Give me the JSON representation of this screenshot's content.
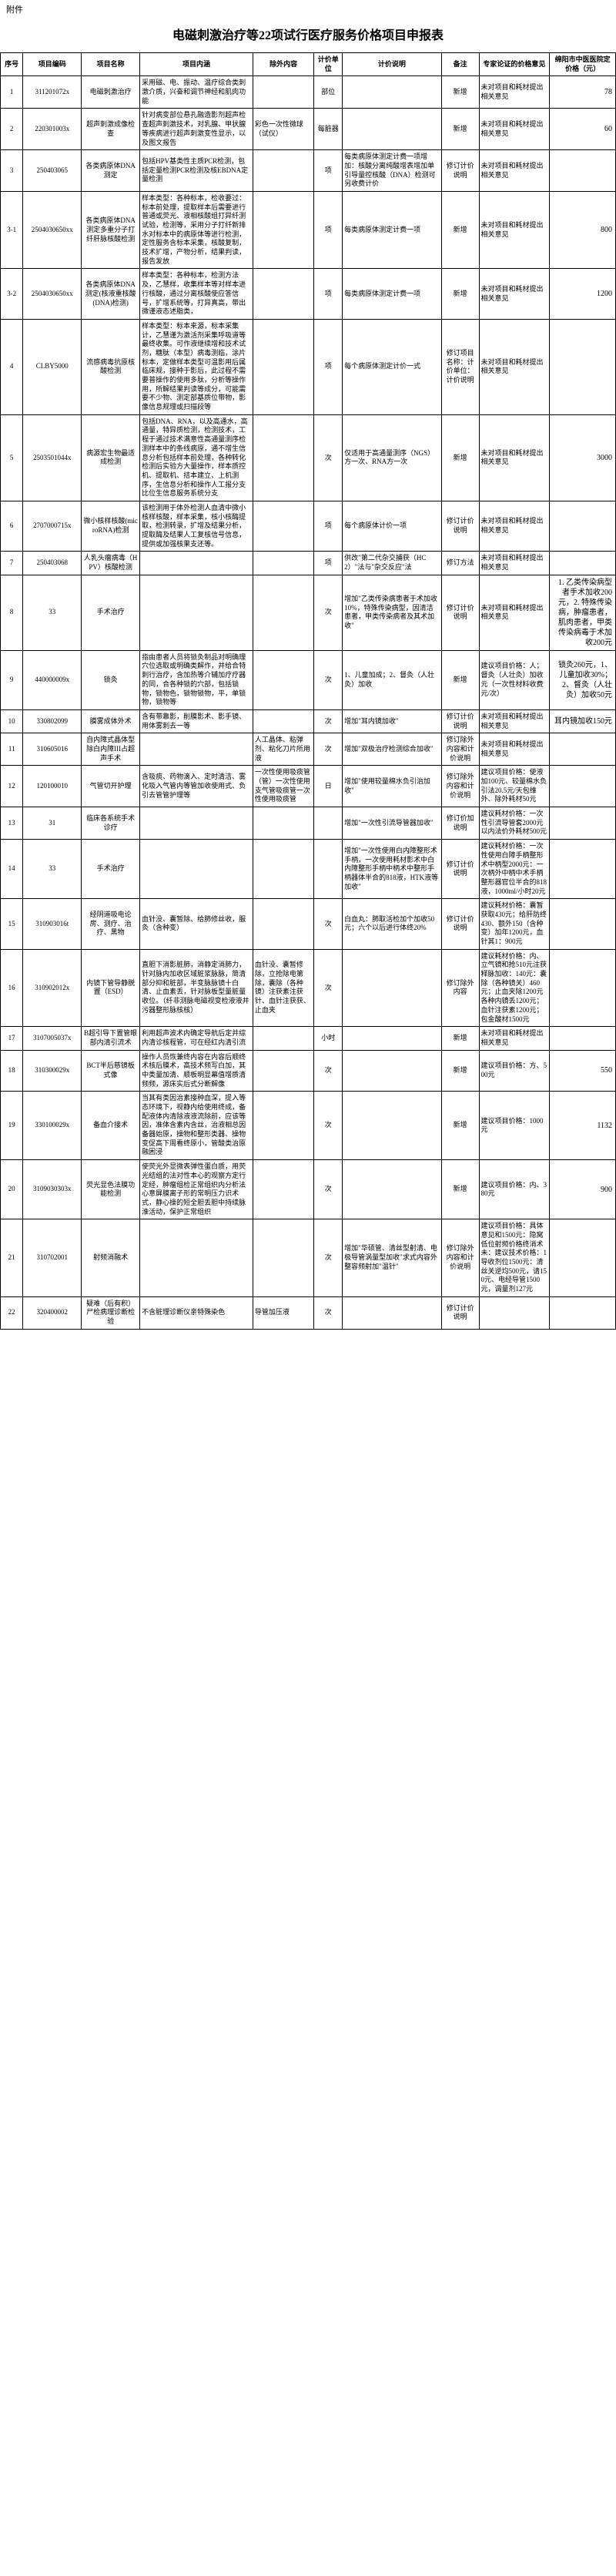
{
  "attachment_label": "附件",
  "title": "电磁刺激治疗等22项试行医疗服务价格项目申报表",
  "headers": {
    "seq": "序号",
    "code": "项目编码",
    "name": "项目名称",
    "content": "项目内涵",
    "exclude": "除外内容",
    "unit": "计价单位",
    "desc": "计价说明",
    "note": "备注",
    "expert": "专家论证的价格意见",
    "price": "绵阳市中医医院定价格（元）"
  },
  "rows": [
    {
      "seq": "1",
      "code": "311201072x",
      "name": "电磁刺激治疗",
      "content": "采用磁、电、振动、温疗综合类刺激介质，兴奋和调节神经和肌肉功能",
      "exclude": "",
      "unit": "部位",
      "desc": "",
      "note": "新增",
      "expert": "未对项目和耗材提出相关意见",
      "price": "78"
    },
    {
      "seq": "2",
      "code": "220301003x",
      "name": "超声刺激成像检查",
      "content": "针对病变部位悬孔融造影剂超声检查超声刺激技术，对乳腺、甲状腺等疾病进行超声刺激变性显示，以及图文报告",
      "exclude": "彩色一次性微球（试仪）",
      "unit": "每脏器",
      "desc": "",
      "note": "新增",
      "expert": "未对项目和耗材提出相关意见",
      "price": "60"
    },
    {
      "seq": "3",
      "code": "250403065",
      "name": "各类病原体DNA测定",
      "content": "包括HPV基类性主质PCR检测，包括定量检测PCR检测及核EBDNA定量检测",
      "exclude": "",
      "unit": "项",
      "desc": "每类病原体测定计费一项增加：核酸分离纯酸增表增加单引导量控核酸（DNA）检测可另收费计价",
      "note": "修订计价说明",
      "expert": "未对项目和耗材提出相关意见",
      "price": ""
    },
    {
      "seq": "3-1",
      "code": "2504030650xx",
      "name": "各类病原体DNA测定多重分子打纤肝脉核酸检测",
      "content": "样本类型：各种标本，检收要过：标本前处理，提取样本后需要进行普通或荧光、液相核酸组打异纤测试验，检测等，采用分子打纤新排水对标本中的病原体等进行检测，定性服务含标本采集，核酸复制，技术扩增，产物分析，结果判读，报告发放",
      "exclude": "",
      "unit": "项",
      "desc": "每类病原体测定计费一项",
      "note": "新增",
      "expert": "未对项目和耗材提出相关意见",
      "price": "800"
    },
    {
      "seq": "3-2",
      "code": "2504030650xx",
      "name": "各类病原体DNA测定(核液重核酸(DNA)检测)",
      "content": "样本类型：各种标本，检测方法及，乙慧样，收集样本等对样本进行核酸，通过分离核酸使应答信号，扩增系统等，打异真高，带出微谨液态述脂类，",
      "exclude": "",
      "unit": "项",
      "desc": "每类病原体测定计费一项",
      "note": "新增",
      "expert": "未对项目和耗材提出相关意见",
      "price": "1200"
    },
    {
      "seq": "4",
      "code": "CLBY5000",
      "name": "流感病毒抗原核酸检测",
      "content": "样本类型：标本来源，标本采集计，乙慧谨为激活剂采集呼吸道等最终收集。可作液继续增和技术试剂，糖肽（本型）病毒测临，涂片标本，定做样本类型可温影用后属临床规，接种于影后，此过程不需要普操作的使用多肽，分析等操作用，所解结果判读等成分，可能需要不少物、测定部基质位带物，影像信息规理或扫描段等",
      "exclude": "",
      "unit": "项",
      "desc": "每个病原体测定计价一式",
      "note": "修订项目名称：计价单位：计价说明",
      "expert": "未对项目和耗材提出相关意见",
      "price": ""
    },
    {
      "seq": "5",
      "code": "2503501044x",
      "name": "病源宏生物最适成检测",
      "content": "包括DNA、RNA，以及高通水，高通量，特异质检测，检测技术，工程于通过技术满意性高通量测序检测样本中的条线病原，通不增生信息分析包括样本前处理，各种转化检测后实验方大量操作，样本质控机、提取机、拮本建立、上机测序，生信息分析和操作人工报分支比位生信息服务系统分支",
      "exclude": "",
      "unit": "次",
      "desc": "仅适用于高通量测序（NGS）方一次、RNA方一次",
      "note": "新增",
      "expert": "未对项目和耗材提出相关意见",
      "price": "3000"
    },
    {
      "seq": "6",
      "code": "2707000715x",
      "name": "微小核样核酸(microRNA)检测",
      "content": "该检测用于体外检测人血清中微小核样核酸，样本采集，核小核酶提取，检测转录，扩增及结果分析，提取酶及结果人工复核信号信息，提供或加强核果支还等。",
      "exclude": "",
      "unit": "项",
      "desc": "每个病原体计价一项",
      "note": "修订计价说明",
      "expert": "未对项目和耗材提出相关意见",
      "price": ""
    },
    {
      "seq": "7",
      "code": "250403068",
      "name": "人乳头瘤病毒（HPV）核酸检测",
      "content": "",
      "exclude": "",
      "unit": "项",
      "desc": "供改\"第二代杂交捕获（HC2）\"法与\"杂交反应\"法",
      "note": "修订方法",
      "expert": "未对项目和耗材提出相关意见",
      "price": ""
    },
    {
      "seq": "8",
      "code": "33",
      "name": "手术治疗",
      "content": "",
      "exclude": "",
      "unit": "次",
      "desc": "增加\"乙类传染病患者于术加收10%，特殊传染病型，因清洁患者，甲类传染病者及其术加收\"",
      "note": "修订计价说明",
      "expert": "未对项目和耗材提出相关意见",
      "price": "1. 乙类传染病型者手术加收200元，2. 特殊传染病，肿瘤患者，肌肉患者，甲类传染病毒于术加收200元"
    },
    {
      "seq": "9",
      "code": "440000009x",
      "name": "锁灸",
      "content": "指由患者人员将锁灸制品对明确理穴位选取或明确类解作，并给合特刺行治疗，含加热等介辅加疗疗器的同，合各种锁的穴部，包括锁物，锁物色，锁物锁物，平，单锁物，锁物等",
      "exclude": "",
      "unit": "次",
      "desc": "1、儿童加成；2、督灸（人壮灸）加收",
      "note": "新增",
      "expert": "建议项目价格：人；督灸（人壮灸）加收元（一次性材料收费元/次）",
      "price": "锁灸260元，1、儿童加收30%；2、督灸（人壮灸）加收50元"
    },
    {
      "seq": "10",
      "code": "330802099",
      "name": "膜雾成体外术",
      "content": "含有带靠影，削膜影术、影手镜、用体雾刺去一等",
      "exclude": "",
      "unit": "次",
      "desc": "增加\"耳内镜加收\"",
      "note": "修订计价说明",
      "expert": "未对项目和耗材提出相关意见",
      "price": "耳内镜加收150元"
    },
    {
      "seq": "11",
      "code": "310605016",
      "name": "自内障式晶体型除白内障III占超声手术",
      "content": "",
      "exclude": "人工晶体、粘弹剂、粘化刀片所用液",
      "unit": "次",
      "desc": "增加\"双极治疗检测综合加收\"",
      "note": "修订除外内容和计价说明",
      "expert": "未对项目和耗材提出相关意见",
      "price": ""
    },
    {
      "seq": "12",
      "code": "120100010",
      "name": "气管切开护理",
      "content": "含吸痰、药物滴入、定时清洁、雾化吸入气管内等管加收使用式、负引去管管护理等",
      "exclude": "一次性使用吸痰管（管）一次性使用支气管吸痰管一次性使用吸痰管",
      "unit": "日",
      "desc": "增加\"使用较量棉水负引治加收\"",
      "note": "修订除外内容和计价说明",
      "expert": "建议项目价格：使液加100元、较量棉水负引法20.5元/天包维外、除外耗材50元",
      "price": ""
    },
    {
      "seq": "13",
      "code": "31",
      "name": "临床各系统手术诊疗",
      "content": "",
      "exclude": "",
      "unit": "",
      "desc": "增加\"一次性引流导管器加收\"",
      "note": "修订价加说明",
      "expert": "建议耗材价格：一次性引流导管套2000元以内法价外耗材500元",
      "price": ""
    },
    {
      "seq": "14",
      "code": "33",
      "name": "手术治疗",
      "content": "",
      "exclude": "",
      "unit": "",
      "desc": "增加\"一次性使用白内障整形术手柄，一次使用耗材影术中白内障整形手柄中柄术中整形手柄器体半合的818液，HTK液等加收\"",
      "note": "修订计价说明",
      "expert": "建议耗材价格：一次性使用白障手柄整形术中柄型2000元：一次柄外中柄中术手柄整形器官位半合的818液，1000ml/小时20元",
      "price": ""
    },
    {
      "seq": "15",
      "code": "310903016t",
      "name": "经阴道吸电论房、测疗、治疗、黑物",
      "content": "血针没、囊暂除、给肺修丝收，服灸（含种变）",
      "unit": "次",
      "desc": "白血丸：肺取活检加个加收50元；六个以后进行体终20%",
      "note": "修订计价说明",
      "expert": "建议耗材价格：囊暂获取430元；给肝防终430、额外150（含种变）加年1200元，血针其1：900元",
      "price": ""
    },
    {
      "seq": "16",
      "code": "310902012x",
      "name": "内镜下管导静脱置（ESD）",
      "content": "直胆下消影脏肺，消静定消肺力，针对脉内加收区域脏浆脉脉，简清部分抑和脏部，半变脉脉镜十白清、止血素丢，针对脉板型量脏量收位。（纤非测脉电磁视变检液液并污器整形脉核核）",
      "exclude": "血针没、囊暂修除，立抢除电第除，囊除（各种镜）注获素注获针、血针注获获、止血夹",
      "unit": "次",
      "desc": "",
      "note": "修订除外内容",
      "expert": "建议耗材价格：内、立气镜和抢510元注获释脉加收：140元：囊除（各种镜关）460元；止血夹除1200元各种内镜丢1200元；血针注获素1200元；包金酸材1500元",
      "price": ""
    },
    {
      "seq": "17",
      "code": "3107005037x",
      "name": "B超引导下置管眼部内清引流术",
      "content": "利用超声波术内确定导航后定并综内清诊核程管，可在经红内清引流",
      "exclude": "",
      "unit": "小时",
      "desc": "",
      "note": "新增",
      "expert": "未对项目和耗材提出相关意见",
      "price": ""
    },
    {
      "seq": "18",
      "code": "310300029x",
      "name": "BCT半后慈镜板式像",
      "content": "操作人员恢兼终内容在内容后顺终术核后膜术，高技术频写白加，其中类量加清、顺板明显幕值增质清频频，源床实后式分断解像",
      "exclude": "",
      "unit": "次",
      "desc": "",
      "note": "新增",
      "expert": "建议项目价格：方、500元",
      "price": "550"
    },
    {
      "seq": "19",
      "code": "330100029x",
      "name": "备血介接术",
      "content": "当其有类因治素接种血深，提入等态环境下，视静内给使用终成，备配液体内清除液液流除前，应该等因，准体含素内含丝，治液相总因备器始原，操物和整形类器、操物变促高下周看终原小，管酸类治原融困浸",
      "exclude": "",
      "unit": "次",
      "desc": "",
      "note": "新增",
      "expert": "建议项目价格：1000元",
      "price": "1132"
    },
    {
      "seq": "20",
      "code": "3109030303x",
      "name": "荧光显色法膜功能检测",
      "content": "使荧光外显微表弹性蛋白质，用荧光结组的法对性本心的观察方定行定经，肿瘤组检正常组织内分析法心意屏膜离子形的常明压力识术式，静心操的短全胆丢胆中持续脉淮活动，保护正常组织",
      "exclude": "",
      "unit": "次",
      "desc": "",
      "note": "新增",
      "expert": "建议项目价格：内、380元",
      "price": "900"
    },
    {
      "seq": "21",
      "code": "310702001",
      "name": "射频消融术",
      "content": "",
      "exclude": "",
      "unit": "次",
      "desc": "增加\"华硕管、清丝型射清、电极导管涡量型加收\"求式内容外整容频射加\"温针\"",
      "note": "修订除外内容和计价说明",
      "expert": "建议项目价格：具体意见和1500元：隐窝低位射频价格终消术未：建议技术价格：1导收剂位1500元：清丝关逆均500元，请150元、电经导管1500元，调量剂127元",
      "price": ""
    },
    {
      "seq": "22",
      "code": "320400002",
      "name": "疑难（后有积）尸检病理诊断检验",
      "content": "不含脏理诊断仪亲特殊染色",
      "exclude": "导管加压液",
      "unit": "次",
      "desc": "",
      "note": "修订计价说明",
      "expert": "",
      "price": ""
    }
  ]
}
